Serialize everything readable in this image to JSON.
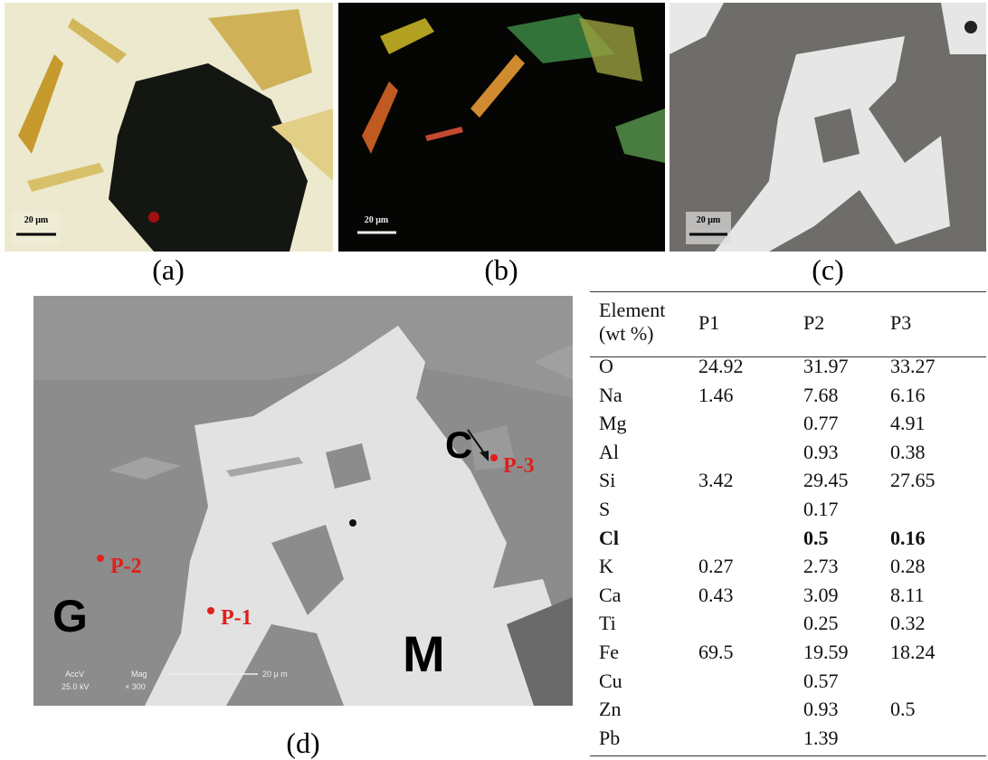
{
  "panels": [
    {
      "label": "(a)",
      "scale_bar": "20 μm"
    },
    {
      "label": "(b)",
      "scale_bar": "20 μm"
    },
    {
      "label": "(c)",
      "scale_bar": "20 μm"
    }
  ],
  "sem": {
    "label": "(d)",
    "markers": [
      "C",
      "P-3",
      "P-2",
      "P-1",
      "G",
      "M"
    ],
    "info": [
      "AccV",
      "Mag",
      "25.0 kV",
      "× 300"
    ],
    "scale_bar": "20 μ m"
  },
  "table": {
    "header": [
      "Element (wt %)",
      "P1",
      "P2",
      "P3"
    ],
    "rows": [
      {
        "cells": [
          "O",
          "24.92",
          "31.97",
          "33.27"
        ]
      },
      {
        "cells": [
          "Na",
          "1.46",
          "7.68",
          "6.16"
        ]
      },
      {
        "cells": [
          "Mg",
          null,
          "0.77",
          "4.91"
        ]
      },
      {
        "cells": [
          "Al",
          null,
          "0.93",
          "0.38"
        ]
      },
      {
        "cells": [
          "Si",
          "3.42",
          "29.45",
          "27.65"
        ]
      },
      {
        "cells": [
          "S",
          null,
          "0.17",
          null
        ]
      },
      {
        "cells": [
          "Cl",
          null,
          "0.5",
          "0.16"
        ],
        "bold": true
      },
      {
        "cells": [
          "K",
          "0.27",
          "2.73",
          "0.28"
        ]
      },
      {
        "cells": [
          "Ca",
          "0.43",
          "3.09",
          "8.11"
        ]
      },
      {
        "cells": [
          "Ti",
          null,
          "0.25",
          "0.32"
        ]
      },
      {
        "cells": [
          "Fe",
          "69.5",
          "19.59",
          "18.24"
        ]
      },
      {
        "cells": [
          "Cu",
          null,
          "0.57",
          null
        ]
      },
      {
        "cells": [
          "Zn",
          null,
          "0.93",
          "0.5"
        ]
      },
      {
        "cells": [
          "Pb",
          null,
          "1.39",
          null
        ]
      }
    ]
  }
}
